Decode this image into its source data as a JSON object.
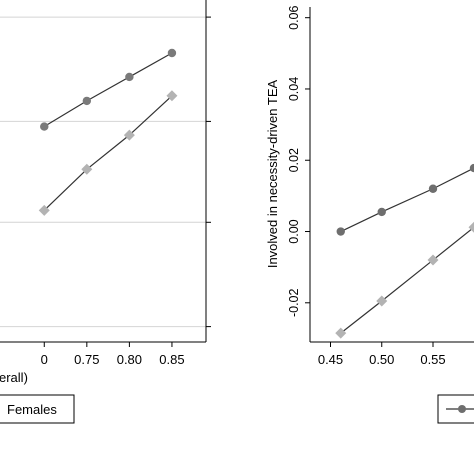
{
  "chart_data": [
    {
      "type": "line",
      "title": "",
      "xlabel": "erall)",
      "ylabel": "",
      "x_ticks": [
        "0",
        "0.75",
        "0.80",
        "0.85"
      ],
      "xlim": [
        0.648,
        0.89
      ],
      "ylim": [
        0,
        1
      ],
      "grid": true,
      "legend": {
        "visible_entry": "Females",
        "placement": "bottom"
      },
      "series": [
        {
          "marker": "circle",
          "color": "#7a7a7a",
          "points": [
            [
              0.7,
              0.63
            ],
            [
              0.75,
              0.705
            ],
            [
              0.8,
              0.775
            ],
            [
              0.85,
              0.845
            ]
          ]
        },
        {
          "name": "Females",
          "marker": "diamond",
          "color": "#b3b3b3",
          "points": [
            [
              0.7,
              0.385
            ],
            [
              0.75,
              0.505
            ],
            [
              0.8,
              0.605
            ],
            [
              0.85,
              0.72
            ]
          ]
        }
      ]
    },
    {
      "type": "line",
      "title": "",
      "xlabel": "",
      "ylabel": "Involved in necessity-driven TEA",
      "x_ticks": [
        "0.45",
        "0.50",
        "0.55"
      ],
      "y_ticks": [
        "-0.02",
        "0.00",
        "0.02",
        "0.04",
        "0.06"
      ],
      "xlim": [
        0.43,
        0.59
      ],
      "ylim": [
        -0.031,
        0.063
      ],
      "grid": false,
      "legend": {
        "placement": "bottom"
      },
      "series": [
        {
          "marker": "circle",
          "color": "#6e6e6e",
          "points": [
            [
              0.46,
              0.0
            ],
            [
              0.5,
              0.0055
            ],
            [
              0.55,
              0.012
            ],
            [
              0.59,
              0.0178
            ]
          ]
        },
        {
          "marker": "diamond",
          "color": "#b3b3b3",
          "points": [
            [
              0.46,
              -0.0285
            ],
            [
              0.5,
              -0.0195
            ],
            [
              0.55,
              -0.008
            ],
            [
              0.59,
              0.0012
            ]
          ]
        }
      ]
    }
  ]
}
